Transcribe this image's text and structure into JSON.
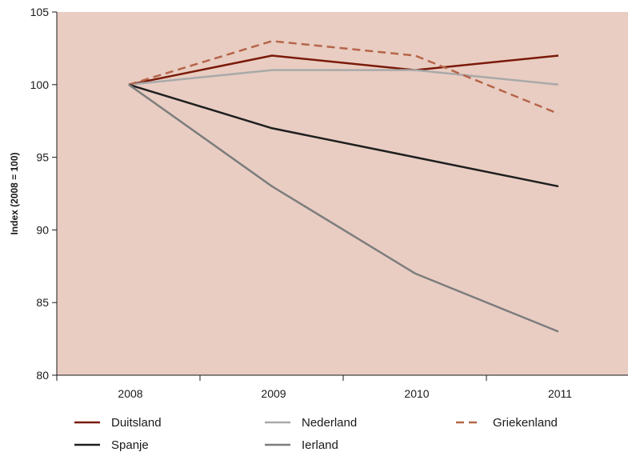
{
  "chart_data": {
    "type": "line",
    "title": "",
    "xlabel": "",
    "ylabel": "Index (2008 = 100)",
    "x": [
      "2008",
      "2009",
      "2010",
      "2011"
    ],
    "ylim": [
      80,
      105
    ],
    "yticks": [
      80,
      85,
      90,
      95,
      100,
      105
    ],
    "grid": false,
    "legend_position": "bottom",
    "background_color": "#e9cdc2",
    "series": [
      {
        "name": "Duitsland",
        "values": [
          100,
          102,
          101,
          102
        ],
        "color": "#7a1a0a",
        "dash": "solid"
      },
      {
        "name": "Nederland",
        "values": [
          100,
          101,
          101,
          100
        ],
        "color": "#a9a9a9",
        "dash": "solid"
      },
      {
        "name": "Griekenland",
        "values": [
          100,
          103,
          102,
          98
        ],
        "color": "#b5654a",
        "dash": "dashed"
      },
      {
        "name": "Spanje",
        "values": [
          100,
          97,
          95,
          93
        ],
        "color": "#1f1f1f",
        "dash": "solid"
      },
      {
        "name": "Ierland",
        "values": [
          100,
          93,
          87,
          83
        ],
        "color": "#7d7d7d",
        "dash": "solid"
      }
    ]
  }
}
